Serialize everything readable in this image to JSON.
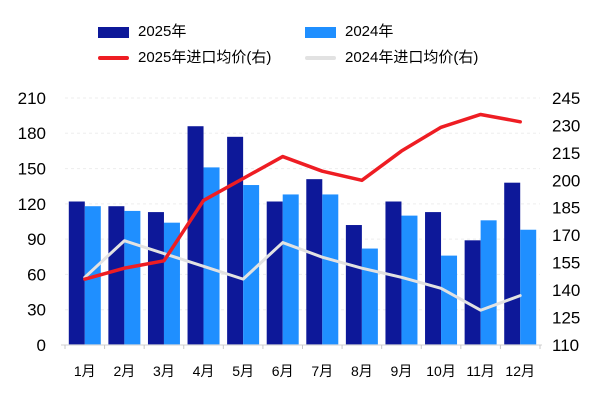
{
  "chart_data": {
    "type": "combo-bar-line",
    "title": "",
    "categories": [
      "1月",
      "2月",
      "3月",
      "4月",
      "5月",
      "6月",
      "7月",
      "8月",
      "9月",
      "10月",
      "11月",
      "12月"
    ],
    "series": [
      {
        "name": "2025年",
        "type": "bar",
        "axis": "left",
        "color": "#0D1899",
        "values": [
          122,
          118,
          113,
          186,
          177,
          122,
          141,
          102,
          122,
          113,
          89,
          138
        ]
      },
      {
        "name": "2024年",
        "type": "bar",
        "axis": "left",
        "color": "#1F8FFF",
        "values": [
          118,
          114,
          104,
          151,
          136,
          128,
          128,
          82,
          110,
          76,
          106,
          98
        ]
      },
      {
        "name": "2025年进口均价(右)",
        "type": "line",
        "axis": "right",
        "color": "#EE1D23",
        "values": [
          146,
          152,
          156,
          189,
          201,
          213,
          205,
          200,
          216,
          229,
          236,
          232
        ]
      },
      {
        "name": "2024年进口均价(右)",
        "type": "line",
        "axis": "right",
        "color": "#E2E2E2",
        "values": [
          147,
          167,
          160,
          153,
          146,
          166,
          158,
          152,
          147,
          141,
          129,
          137
        ]
      }
    ],
    "left_axis": {
      "min": 0,
      "max": 210,
      "step": 30,
      "ticks": [
        0,
        30,
        60,
        90,
        120,
        150,
        180,
        210
      ]
    },
    "right_axis": {
      "min": 110,
      "max": 245,
      "step": 15,
      "ticks": [
        110,
        125,
        140,
        155,
        170,
        185,
        200,
        215,
        230,
        245
      ]
    },
    "legend_position": "top",
    "grid": "faint dashed horizontal",
    "baseline_color": "#d9d9d9"
  }
}
